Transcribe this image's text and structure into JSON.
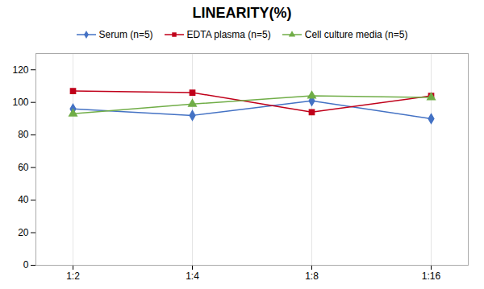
{
  "chart_data": {
    "type": "line",
    "title": "LINEARITY(%)",
    "categories": [
      "1:2",
      "1:4",
      "1:8",
      "1:16"
    ],
    "series": [
      {
        "name": "Serum (n=5)",
        "color": "#4472C4",
        "marker": "diamond",
        "values": [
          96,
          92,
          101,
          90
        ]
      },
      {
        "name": "EDTA plasma (n=5)",
        "color": "#C0001A",
        "marker": "square",
        "values": [
          107,
          106,
          94,
          104
        ]
      },
      {
        "name": "Cell culture media (n=5)",
        "color": "#70AD47",
        "marker": "triangle",
        "values": [
          93,
          99,
          104,
          103
        ]
      }
    ],
    "ylim": [
      0,
      130
    ],
    "yticks": [
      0,
      20,
      40,
      60,
      80,
      100,
      120
    ],
    "grid": "x",
    "legend": "top"
  }
}
